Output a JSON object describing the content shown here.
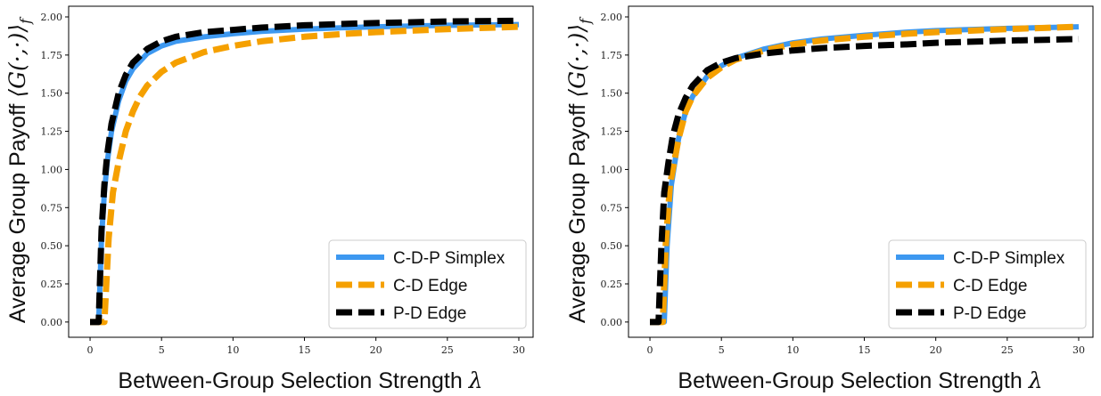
{
  "chart_data": [
    {
      "type": "line",
      "panel": "left",
      "xlabel": "Between-Group Selection Strength",
      "xlabel_symbol": "λ",
      "ylabel": "Average Group Payoff",
      "ylabel_symbol": "⟨G(·,·)⟩",
      "ylabel_subscript": "f",
      "xlim": [
        -1.5,
        31
      ],
      "ylim": [
        -0.1,
        2.07
      ],
      "xticks": [
        "0",
        "5",
        "10",
        "15",
        "20",
        "25",
        "30"
      ],
      "yticks": [
        "0.00",
        "0.25",
        "0.50",
        "0.75",
        "1.00",
        "1.25",
        "1.50",
        "1.75",
        "2.00"
      ],
      "grid": false,
      "legend_position": "lower-right",
      "series": [
        {
          "name": "C-D-P Simplex",
          "color": "#3d98f0",
          "style": "solid",
          "x": [
            0,
            0.6,
            0.8,
            1.0,
            1.2,
            1.5,
            2,
            2.5,
            3,
            4,
            5,
            6,
            8,
            10,
            12,
            15,
            18,
            20,
            25,
            30
          ],
          "y": [
            0.0,
            0.0,
            0.55,
            0.85,
            1.05,
            1.25,
            1.45,
            1.58,
            1.66,
            1.76,
            1.81,
            1.84,
            1.87,
            1.89,
            1.905,
            1.92,
            1.93,
            1.935,
            1.945,
            1.95
          ]
        },
        {
          "name": "C-D Edge",
          "color": "#f5a000",
          "style": "dashed",
          "x": [
            0,
            1.0,
            1.3,
            1.6,
            2,
            2.5,
            3,
            3.5,
            4,
            5,
            6,
            8,
            10,
            12,
            15,
            18,
            20,
            25,
            30
          ],
          "y": [
            0.0,
            0.0,
            0.55,
            0.85,
            1.05,
            1.25,
            1.38,
            1.48,
            1.55,
            1.64,
            1.7,
            1.77,
            1.81,
            1.84,
            1.87,
            1.89,
            1.9,
            1.92,
            1.935
          ]
        },
        {
          "name": "P-D Edge",
          "color": "#000000",
          "style": "dashed",
          "x": [
            0,
            0.6,
            0.8,
            1.0,
            1.2,
            1.5,
            2,
            2.5,
            3,
            4,
            5,
            6,
            8,
            10,
            12,
            15,
            18,
            20,
            25,
            30
          ],
          "y": [
            0.0,
            0.0,
            0.6,
            0.9,
            1.1,
            1.3,
            1.5,
            1.62,
            1.7,
            1.79,
            1.84,
            1.87,
            1.9,
            1.915,
            1.93,
            1.945,
            1.955,
            1.96,
            1.97,
            1.975
          ]
        }
      ]
    },
    {
      "type": "line",
      "panel": "right",
      "xlabel": "Between-Group Selection Strength",
      "xlabel_symbol": "λ",
      "ylabel": "Average Group Payoff",
      "ylabel_symbol": "⟨G(·,·)⟩",
      "ylabel_subscript": "f",
      "xlim": [
        -1.5,
        31
      ],
      "ylim": [
        -0.1,
        2.07
      ],
      "xticks": [
        "0",
        "5",
        "10",
        "15",
        "20",
        "25",
        "30"
      ],
      "yticks": [
        "0.00",
        "0.25",
        "0.50",
        "0.75",
        "1.00",
        "1.25",
        "1.50",
        "1.75",
        "2.00"
      ],
      "grid": false,
      "legend_position": "lower-right",
      "series": [
        {
          "name": "C-D-P Simplex",
          "color": "#3d98f0",
          "style": "solid",
          "x": [
            0,
            1.0,
            1.2,
            1.5,
            2,
            2.5,
            3,
            4,
            5,
            6,
            8,
            10,
            12,
            15,
            18,
            20,
            25,
            30
          ],
          "y": [
            0.0,
            0.0,
            0.5,
            0.9,
            1.2,
            1.38,
            1.48,
            1.61,
            1.68,
            1.73,
            1.79,
            1.83,
            1.855,
            1.88,
            1.9,
            1.91,
            1.925,
            1.935
          ]
        },
        {
          "name": "C-D Edge",
          "color": "#f5a000",
          "style": "dashed",
          "x": [
            0,
            0.9,
            1.1,
            1.4,
            2,
            2.5,
            3,
            4,
            5,
            6,
            8,
            10,
            12,
            15,
            18,
            20,
            25,
            30
          ],
          "y": [
            0.0,
            0.0,
            0.5,
            0.9,
            1.2,
            1.38,
            1.48,
            1.6,
            1.67,
            1.72,
            1.78,
            1.82,
            1.845,
            1.87,
            1.89,
            1.9,
            1.92,
            1.935
          ]
        },
        {
          "name": "P-D Edge",
          "color": "#000000",
          "style": "dashed",
          "x": [
            0,
            0.6,
            0.8,
            1.0,
            1.3,
            1.6,
            2,
            2.5,
            3,
            4,
            5,
            6,
            8,
            10,
            12,
            15,
            18,
            20,
            25,
            30
          ],
          "y": [
            0.0,
            0.0,
            0.5,
            0.85,
            1.05,
            1.22,
            1.36,
            1.47,
            1.55,
            1.65,
            1.7,
            1.73,
            1.76,
            1.78,
            1.795,
            1.81,
            1.82,
            1.83,
            1.845,
            1.855
          ]
        }
      ]
    }
  ]
}
